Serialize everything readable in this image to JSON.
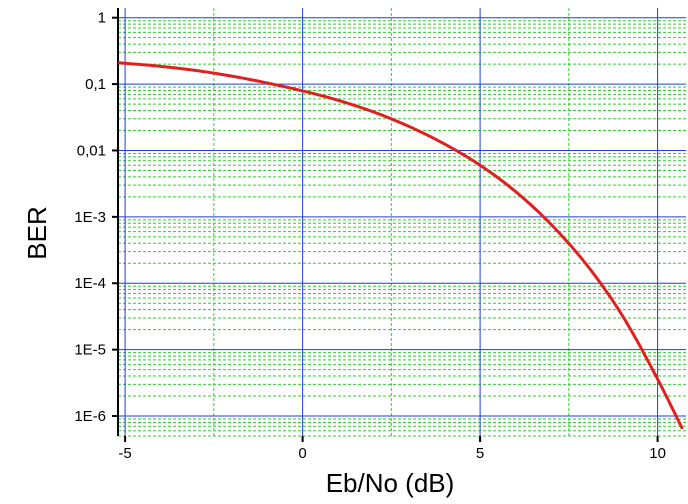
{
  "chart_data": {
    "type": "line",
    "title": "",
    "xlabel": "Eb/No (dB)",
    "ylabel": "BER",
    "xlim": [
      -5.2,
      10.8
    ],
    "ylim": [
      5e-07,
      1.4
    ],
    "yscale": "log",
    "grid": true,
    "legend": "none",
    "colors": {
      "major_grid": "#1f3fd8",
      "minor_grid": "#33cc33",
      "curve": "#e02020",
      "background": "#ffffff"
    },
    "x_ticks": [
      {
        "value": -5,
        "label": "-5"
      },
      {
        "value": 0,
        "label": "0"
      },
      {
        "value": 5,
        "label": "5"
      },
      {
        "value": 10,
        "label": "10"
      }
    ],
    "y_ticks": [
      {
        "value": 1,
        "label": "1"
      },
      {
        "value": 0.1,
        "label": "0,1"
      },
      {
        "value": 0.01,
        "label": "0,01"
      },
      {
        "value": 0.001,
        "label": "1E-3"
      },
      {
        "value": 0.0001,
        "label": "1E-4"
      },
      {
        "value": 1e-05,
        "label": "1E-5"
      },
      {
        "value": 1e-06,
        "label": "1E-6"
      }
    ],
    "series": [
      {
        "x": [
          -5.2,
          -4,
          -3,
          -2,
          -1,
          0,
          1,
          2,
          3,
          4,
          5,
          6,
          7,
          8,
          9,
          10,
          10.7
        ],
        "y": [
          0.21,
          0.185,
          0.16,
          0.132,
          0.104,
          0.079,
          0.057,
          0.038,
          0.023,
          0.0125,
          0.006,
          0.0024,
          0.00077,
          0.00019,
          3.3e-05,
          3.6e-06,
          6.4e-07
        ]
      }
    ]
  }
}
